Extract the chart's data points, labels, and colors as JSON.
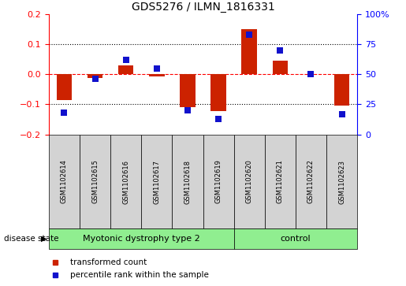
{
  "title": "GDS5276 / ILMN_1816331",
  "samples": [
    "GSM1102614",
    "GSM1102615",
    "GSM1102616",
    "GSM1102617",
    "GSM1102618",
    "GSM1102619",
    "GSM1102620",
    "GSM1102621",
    "GSM1102622",
    "GSM1102623"
  ],
  "red_values": [
    -0.085,
    -0.012,
    0.03,
    -0.008,
    -0.11,
    -0.122,
    0.15,
    0.045,
    0.002,
    -0.105
  ],
  "blue_values": [
    18,
    46,
    62,
    55,
    20,
    13,
    83,
    70,
    50,
    17
  ],
  "groups": [
    {
      "label": "Myotonic dystrophy type 2",
      "start": 0,
      "end": 6
    },
    {
      "label": "control",
      "start": 6,
      "end": 10
    }
  ],
  "ylim_left": [
    -0.2,
    0.2
  ],
  "ylim_right": [
    0,
    100
  ],
  "yticks_left": [
    -0.2,
    -0.1,
    0.0,
    0.1,
    0.2
  ],
  "yticks_right": [
    0,
    25,
    50,
    75,
    100
  ],
  "ytick_labels_right": [
    "0",
    "25",
    "50",
    "75",
    "100%"
  ],
  "hlines": [
    -0.1,
    0.0,
    0.1
  ],
  "red_color": "#CC2200",
  "blue_color": "#1111CC",
  "bar_width": 0.5,
  "dot_size": 40,
  "group_color": "#90EE90",
  "cell_color": "#d3d3d3",
  "disease_state_label": "disease state",
  "legend_items": [
    "transformed count",
    "percentile rank within the sample"
  ],
  "title_fontsize": 10,
  "axis_fontsize": 8,
  "label_fontsize": 6,
  "group_fontsize": 8,
  "legend_fontsize": 7.5
}
